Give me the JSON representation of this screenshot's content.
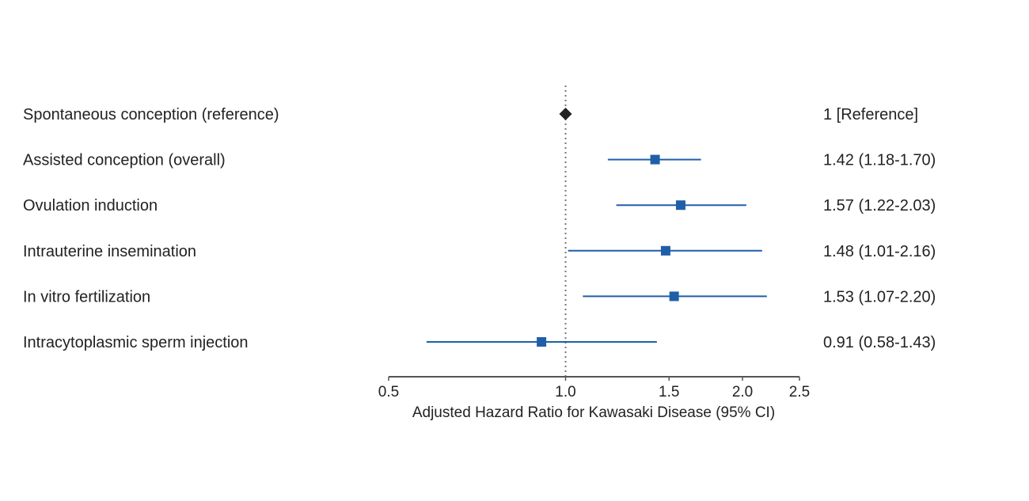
{
  "chart_data": {
    "type": "forest",
    "xlabel": "Adjusted Hazard Ratio for Kawasaki Disease (95% CI)",
    "x_scale": "log",
    "xlim": [
      0.5,
      2.5
    ],
    "xticks": [
      {
        "value": 0.5,
        "label": "0.5"
      },
      {
        "value": 1.0,
        "label": "1.0"
      },
      {
        "value": 1.5,
        "label": "1.5"
      },
      {
        "value": 2.0,
        "label": "2.0"
      },
      {
        "value": 2.5,
        "label": "2.5"
      }
    ],
    "reference_line": 1.0,
    "rows": [
      {
        "label": "Spontaneous conception (reference)",
        "estimate": 1.0,
        "lower": null,
        "upper": null,
        "estimate_text": "1 [Reference]",
        "marker": "diamond"
      },
      {
        "label": "Assisted conception (overall)",
        "estimate": 1.42,
        "lower": 1.18,
        "upper": 1.7,
        "estimate_text": "1.42 (1.18-1.70)",
        "marker": "square"
      },
      {
        "label": "Ovulation induction",
        "estimate": 1.57,
        "lower": 1.22,
        "upper": 2.03,
        "estimate_text": "1.57 (1.22-2.03)",
        "marker": "square"
      },
      {
        "label": "Intrauterine insemination",
        "estimate": 1.48,
        "lower": 1.01,
        "upper": 2.16,
        "estimate_text": "1.48 (1.01-2.16)",
        "marker": "square"
      },
      {
        "label": "In vitro fertilization",
        "estimate": 1.53,
        "lower": 1.07,
        "upper": 2.2,
        "estimate_text": "1.53 (1.07-2.20)",
        "marker": "square"
      },
      {
        "label": "Intracytoplasmic sperm injection",
        "estimate": 0.91,
        "lower": 0.58,
        "upper": 1.43,
        "estimate_text": "0.91 (0.58-1.43)",
        "marker": "square"
      }
    ]
  },
  "colors": {
    "estimate": "#1f5fa8",
    "reference_marker": "#222222",
    "axis": "#555555",
    "reference_line": "#777777",
    "text": "#222222"
  }
}
